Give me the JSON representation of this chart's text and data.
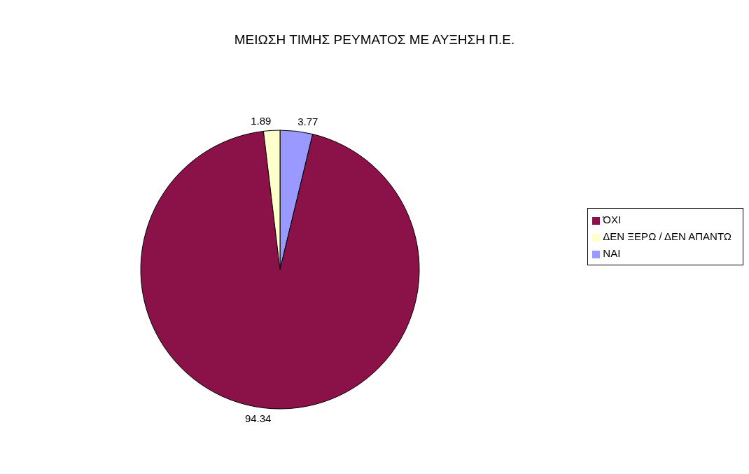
{
  "chart_data": {
    "type": "pie",
    "title": "ΜΕΙΩΣΗ ΤΙΜΗΣ ΡΕΥΜΑΤΟΣ ΜΕ ΑΥΞΗΣΗ Π.Ε.",
    "categories": [
      "ΝΑΙ",
      "ΌΧΙ",
      "ΔΕΝ ΞΕΡΩ / ΔΕΝ ΑΠΑΝΤΩ"
    ],
    "values": [
      3.77,
      94.34,
      1.89
    ],
    "colors": [
      "#9999ff",
      "#8b1149",
      "#ffffcc"
    ],
    "data_labels": true,
    "legend": "right"
  }
}
